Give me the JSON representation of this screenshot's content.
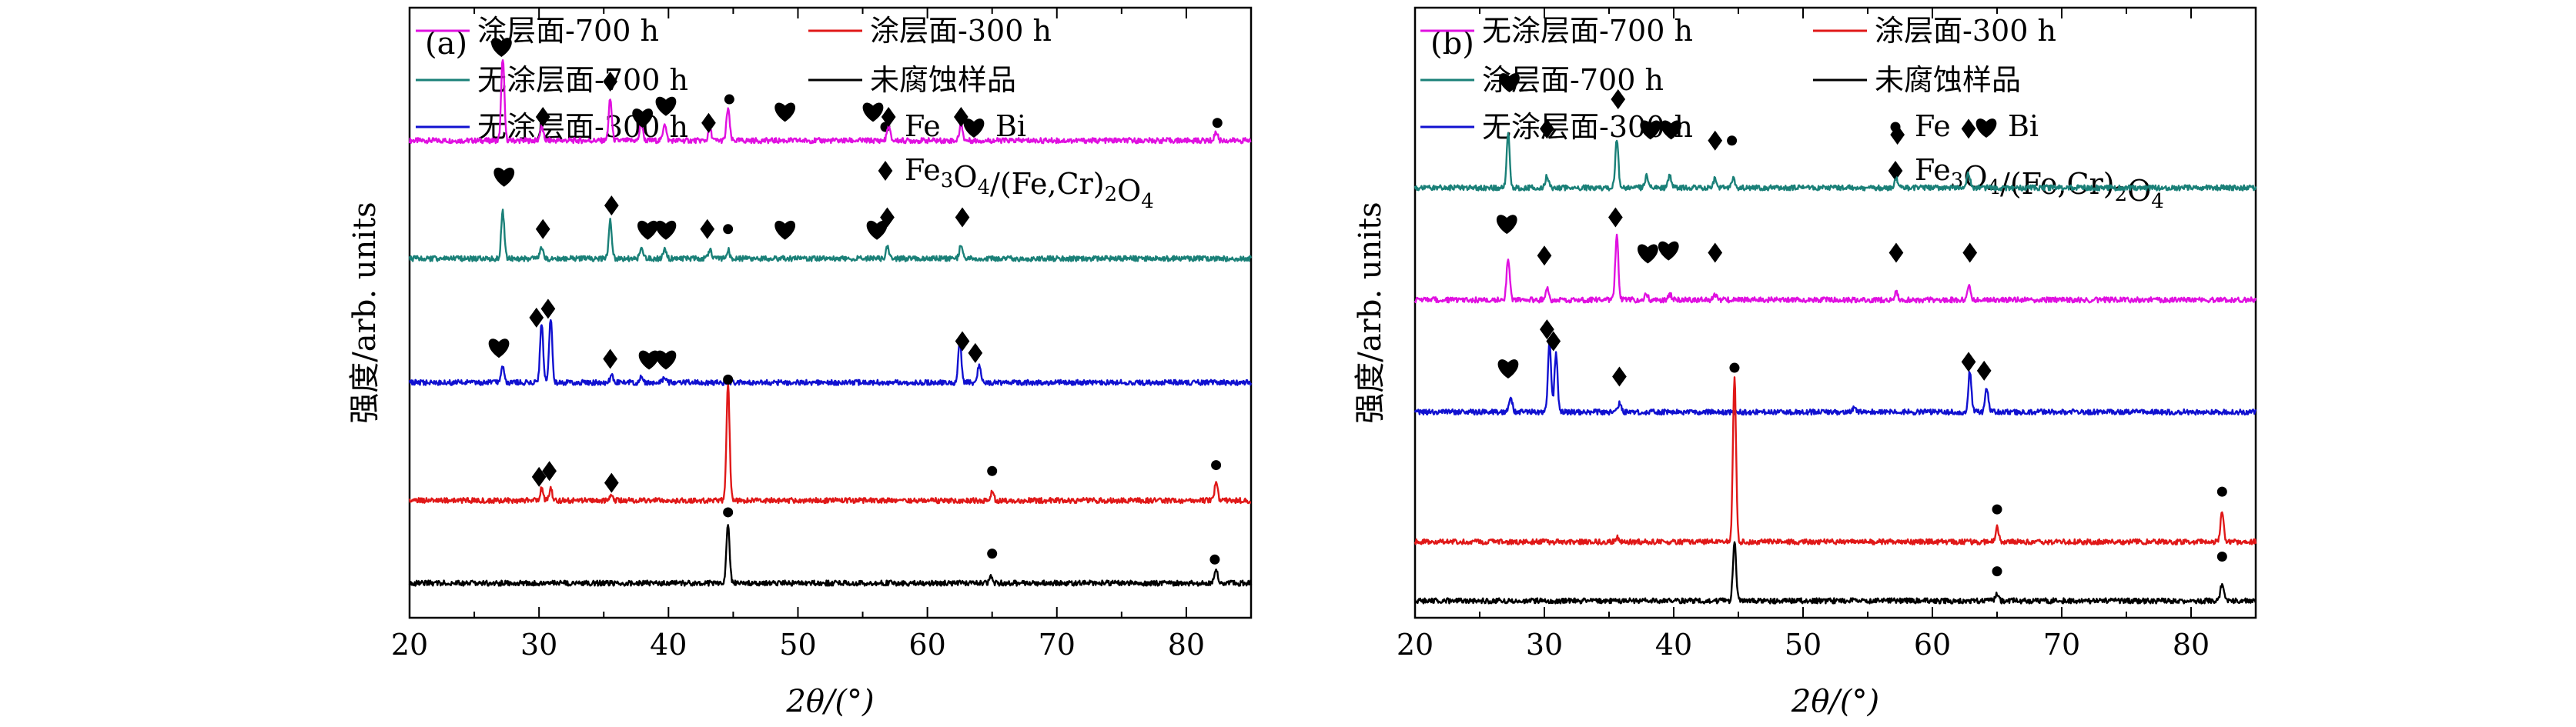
{
  "colors": {
    "magenta": "#e010e0",
    "teal": "#1a8078",
    "blue": "#1010d0",
    "red": "#e01818",
    "black": "#000000"
  },
  "chart_data": [
    {
      "type": "line",
      "panel_label": "(a)",
      "xlabel": "2θ/(°)",
      "ylabel": "强度/arb. units",
      "xlim": [
        20,
        85
      ],
      "x_ticks": [
        20,
        30,
        40,
        50,
        60,
        70,
        80
      ],
      "grid": false,
      "legend": [
        {
          "label": "涂层面-700 h",
          "color": "#e010e0"
        },
        {
          "label": "涂层面-300 h",
          "color": "#e01818"
        },
        {
          "label": "无涂层面-700 h",
          "color": "#1a8078"
        },
        {
          "label": "未腐蚀样品",
          "color": "#000000"
        },
        {
          "label": "无涂层面-300 h",
          "color": "#1010d0"
        }
      ],
      "marker_legend": {
        "dot": "Fe",
        "heart": "Bi",
        "diamond": "Fe3O4/(Fe,Cr)2O4"
      },
      "series": [
        {
          "name": "涂层面-700 h",
          "color": "#e010e0",
          "offset": 78,
          "peaks": [
            [
              27.2,
              14
            ],
            [
              30.2,
              2.5
            ],
            [
              35.5,
              7
            ],
            [
              37.9,
              3
            ],
            [
              39.7,
              3
            ],
            [
              43.2,
              2
            ],
            [
              44.6,
              5.5
            ],
            [
              57.0,
              2.5
            ],
            [
              62.6,
              3
            ],
            [
              82.3,
              1.5
            ]
          ],
          "markers": [
            [
              "heart",
              27.1,
              94
            ],
            [
              "diamond",
              30.3,
              82
            ],
            [
              "diamond",
              35.5,
              88
            ],
            [
              "heart",
              38.0,
              82
            ],
            [
              "heart",
              39.8,
              84
            ],
            [
              "diamond",
              43.1,
              81
            ],
            [
              "dot",
              44.7,
              85
            ],
            [
              "heart",
              49.0,
              83
            ],
            [
              "heart",
              55.8,
              83
            ],
            [
              "diamond",
              57.0,
              82
            ],
            [
              "diamond",
              62.6,
              82
            ],
            [
              "dot",
              82.4,
              81
            ]
          ]
        },
        {
          "name": "无涂层面-700 h",
          "color": "#1a8078",
          "offset": 58,
          "peaks": [
            [
              27.2,
              8
            ],
            [
              30.2,
              2
            ],
            [
              35.5,
              6.5
            ],
            [
              37.9,
              1.5
            ],
            [
              39.7,
              1.5
            ],
            [
              43.2,
              1.5
            ],
            [
              44.6,
              1.5
            ],
            [
              56.9,
              2
            ],
            [
              62.6,
              2.5
            ]
          ],
          "markers": [
            [
              "heart",
              27.3,
              72
            ],
            [
              "diamond",
              30.3,
              63
            ],
            [
              "diamond",
              35.6,
              67
            ],
            [
              "heart",
              38.4,
              63
            ],
            [
              "heart",
              39.8,
              63
            ],
            [
              "diamond",
              43.0,
              63
            ],
            [
              "dot",
              44.6,
              63
            ],
            [
              "heart",
              49.0,
              63
            ],
            [
              "heart",
              56.1,
              63
            ],
            [
              "diamond",
              56.9,
              65
            ],
            [
              "diamond",
              62.7,
              65
            ]
          ]
        },
        {
          "name": "无涂层面-300 h",
          "color": "#1010d0",
          "offset": 37,
          "peaks": [
            [
              27.2,
              3
            ],
            [
              30.2,
              10
            ],
            [
              30.9,
              11
            ],
            [
              35.6,
              1.2
            ],
            [
              37.9,
              1
            ],
            [
              39.7,
              1
            ],
            [
              62.5,
              7
            ],
            [
              64.0,
              3
            ]
          ],
          "markers": [
            [
              "heart",
              26.9,
              43
            ],
            [
              "diamond",
              29.8,
              48
            ],
            [
              "diamond",
              30.7,
              49.5
            ],
            [
              "diamond",
              35.5,
              41
            ],
            [
              "heart",
              38.5,
              41
            ],
            [
              "heart",
              39.8,
              41
            ],
            [
              "diamond",
              62.7,
              44
            ],
            [
              "diamond",
              63.7,
              42
            ]
          ]
        },
        {
          "name": "涂层面-300 h",
          "color": "#e01818",
          "offset": 17,
          "peaks": [
            [
              30.2,
              2
            ],
            [
              30.9,
              2
            ],
            [
              35.6,
              1
            ],
            [
              44.6,
              19.5
            ],
            [
              65.0,
              1.5
            ],
            [
              82.3,
              3
            ]
          ],
          "markers": [
            [
              "diamond",
              30.0,
              21
            ],
            [
              "diamond",
              30.8,
              22
            ],
            [
              "diamond",
              35.6,
              20
            ],
            [
              "dot",
              44.6,
              37.5
            ],
            [
              "dot",
              65.0,
              22
            ],
            [
              "dot",
              82.3,
              23
            ]
          ]
        },
        {
          "name": "未腐蚀样品",
          "color": "#000000",
          "offset": 3,
          "peaks": [
            [
              44.6,
              10
            ],
            [
              64.9,
              1.2
            ],
            [
              82.3,
              2.5
            ]
          ],
          "markers": [
            [
              "dot",
              44.6,
              15
            ],
            [
              "dot",
              65.0,
              8
            ],
            [
              "dot",
              82.2,
              7
            ]
          ]
        }
      ]
    },
    {
      "type": "line",
      "panel_label": "(b)",
      "xlabel": "2θ/(°)",
      "ylabel": "强度/arb. units",
      "xlim": [
        20,
        85
      ],
      "x_ticks": [
        20,
        30,
        40,
        50,
        60,
        70,
        80
      ],
      "grid": false,
      "legend": [
        {
          "label": "无涂层面-700 h",
          "color": "#e010e0"
        },
        {
          "label": "涂层面-300 h",
          "color": "#e01818"
        },
        {
          "label": "涂层面-700 h",
          "color": "#1a8078"
        },
        {
          "label": "未腐蚀样品",
          "color": "#000000"
        },
        {
          "label": "无涂层面-300 h",
          "color": "#1010d0"
        }
      ],
      "marker_legend": {
        "dot": "Fe",
        "heart": "Bi",
        "diamond": "Fe3O4/(Fe,Cr)2O4"
      },
      "series": [
        {
          "name": "涂层面-700 h",
          "color": "#1a8078",
          "offset": 70,
          "peaks": [
            [
              27.2,
              9
            ],
            [
              30.2,
              2
            ],
            [
              35.6,
              8
            ],
            [
              37.9,
              2
            ],
            [
              39.7,
              2
            ],
            [
              43.2,
              1.5
            ],
            [
              44.6,
              1.5
            ],
            [
              57.2,
              1.5
            ],
            [
              62.8,
              2.5
            ]
          ],
          "markers": [
            [
              "heart",
              27.3,
              88
            ],
            [
              "diamond",
              30.2,
              80
            ],
            [
              "diamond",
              35.7,
              85
            ],
            [
              "heart",
              38.2,
              80
            ],
            [
              "heart",
              39.8,
              80
            ],
            [
              "diamond",
              43.2,
              78
            ],
            [
              "dot",
              44.5,
              78
            ],
            [
              "diamond",
              57.3,
              79
            ],
            [
              "diamond",
              62.8,
              80
            ]
          ]
        },
        {
          "name": "无涂层面-700 h",
          "color": "#e010e0",
          "offset": 51,
          "peaks": [
            [
              27.2,
              7
            ],
            [
              30.2,
              2
            ],
            [
              35.6,
              11
            ],
            [
              37.9,
              1
            ],
            [
              39.7,
              1
            ],
            [
              43.2,
              1
            ],
            [
              57.2,
              1.5
            ],
            [
              62.8,
              2.5
            ]
          ],
          "markers": [
            [
              "heart",
              27.1,
              64
            ],
            [
              "diamond",
              30.0,
              58.5
            ],
            [
              "diamond",
              35.5,
              65
            ],
            [
              "heart",
              38.0,
              59
            ],
            [
              "heart",
              39.6,
              59.5
            ],
            [
              "diamond",
              43.2,
              59
            ],
            [
              "diamond",
              57.2,
              59
            ],
            [
              "diamond",
              62.9,
              59
            ]
          ]
        },
        {
          "name": "无涂层面-300 h",
          "color": "#1010d0",
          "offset": 32,
          "peaks": [
            [
              27.4,
              2.5
            ],
            [
              30.4,
              12
            ],
            [
              30.9,
              10
            ],
            [
              35.8,
              1.5
            ],
            [
              54.0,
              0.8
            ],
            [
              62.9,
              7
            ],
            [
              64.2,
              4
            ]
          ],
          "markers": [
            [
              "heart",
              27.2,
              39.5
            ],
            [
              "diamond",
              30.2,
              46
            ],
            [
              "diamond",
              30.7,
              44
            ],
            [
              "diamond",
              35.8,
              38
            ],
            [
              "diamond",
              62.8,
              40.5
            ],
            [
              "diamond",
              64.0,
              39
            ]
          ]
        },
        {
          "name": "涂层面-300 h",
          "color": "#e01818",
          "offset": 10,
          "peaks": [
            [
              35.6,
              0.8
            ],
            [
              44.7,
              28
            ],
            [
              65.0,
              2.5
            ],
            [
              82.4,
              5
            ]
          ],
          "markers": [
            [
              "dot",
              44.7,
              39.5
            ],
            [
              "dot",
              65.0,
              15.5
            ],
            [
              "dot",
              82.4,
              18.5
            ]
          ]
        },
        {
          "name": "未腐蚀样品",
          "color": "#000000",
          "offset": 0,
          "peaks": [
            [
              44.7,
              10
            ],
            [
              65.0,
              1.2
            ],
            [
              82.4,
              3
            ]
          ],
          "markers": [
            [
              "dot",
              65.0,
              5
            ],
            [
              "dot",
              82.4,
              7.5
            ]
          ]
        }
      ]
    }
  ]
}
